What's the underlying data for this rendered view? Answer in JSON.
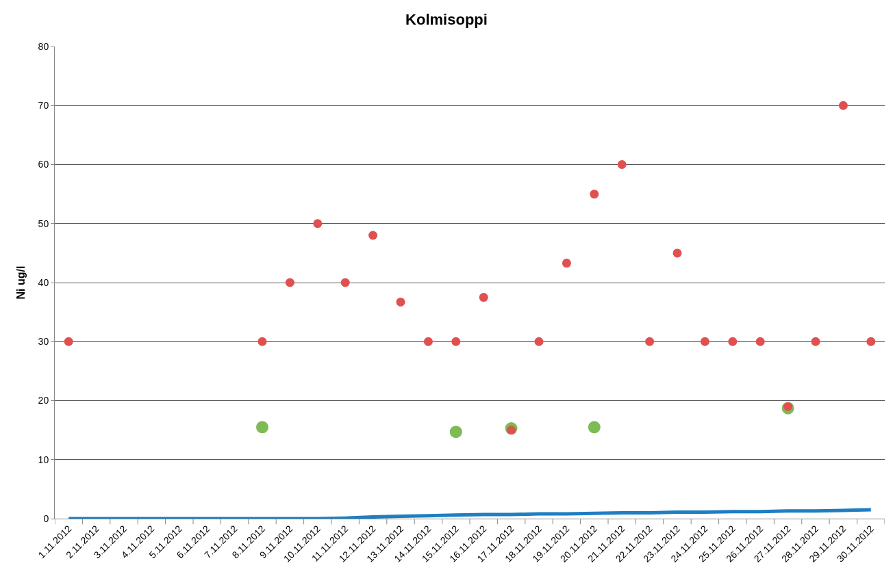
{
  "chart_data": {
    "type": "scatter",
    "title": "Kolmisoppi",
    "ylabel": "Ni ug/l",
    "categories": [
      "1.11.2012",
      "2.11.2012",
      "3.11.2012",
      "4.11.2012",
      "5.11.2012",
      "6.11.2012",
      "7.11.2012",
      "8.11.2012",
      "9.11.2012",
      "10.11.2012",
      "11.11.2012",
      "12.11.2012",
      "13.11.2012",
      "14.11.2012",
      "15.11.2012",
      "16.11.2012",
      "17.11.2012",
      "18.11.2012",
      "19.11.2012",
      "20.11.2012",
      "21.11.2012",
      "22.11.2012",
      "23.11.2012",
      "24.11.2012",
      "25.11.2012",
      "26.11.2012",
      "27.11.2012",
      "28.11.2012",
      "29.11.2012",
      "30.11.2012"
    ],
    "series": [
      {
        "type": "line",
        "marker": "none",
        "color": "#1f7ec2",
        "values": [
          0,
          0,
          0,
          0,
          0,
          0,
          0,
          0,
          0,
          0,
          0.1,
          0.3,
          0.4,
          0.5,
          0.6,
          0.7,
          0.7,
          0.8,
          0.8,
          0.9,
          1.0,
          1.0,
          1.1,
          1.1,
          1.2,
          1.2,
          1.3,
          1.3,
          1.4,
          1.5
        ]
      },
      {
        "color": "#7dbb55",
        "values": [
          null,
          null,
          null,
          null,
          null,
          null,
          null,
          15.5,
          null,
          null,
          null,
          null,
          null,
          null,
          14.7,
          null,
          15.3,
          null,
          null,
          15.5,
          null,
          null,
          null,
          null,
          null,
          null,
          18.7,
          null,
          null,
          null
        ]
      },
      {
        "color": "#e05050",
        "values": [
          30,
          null,
          null,
          null,
          null,
          null,
          null,
          30,
          40,
          50,
          40,
          48,
          36.7,
          30,
          30,
          37.5,
          15,
          30,
          43.3,
          55,
          60,
          30,
          45,
          30,
          30,
          30,
          19,
          30,
          70,
          30
        ]
      }
    ],
    "ylim": [
      0,
      80
    ],
    "yticks": [
      0,
      10,
      20,
      30,
      40,
      50,
      60,
      70,
      80
    ],
    "grid": "y",
    "marker": "circle"
  }
}
